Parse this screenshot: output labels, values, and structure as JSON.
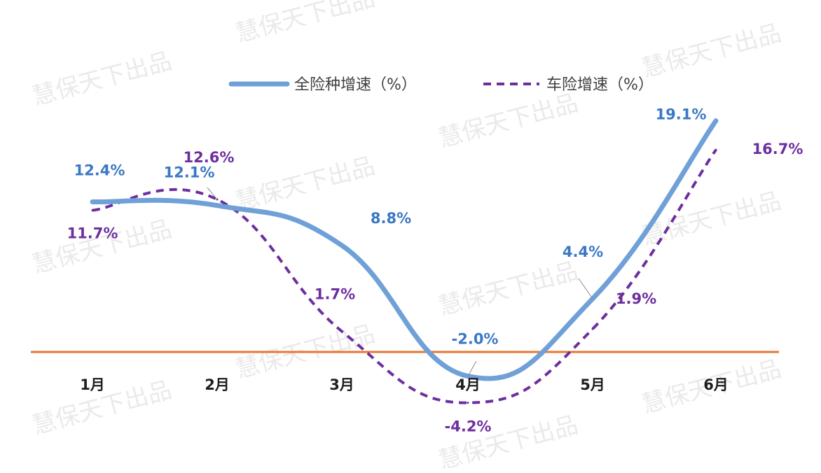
{
  "watermark": "慧保天下出品",
  "colors": {
    "all_lines": "#6fa0d8",
    "auto": "#6d2f9f",
    "all_label": "#3a78c4",
    "auto_label": "#6d2f9f",
    "zero_line": "#e9772f"
  },
  "chart_data": {
    "type": "line",
    "categories": [
      "1月",
      "2月",
      "3月",
      "4月",
      "5月",
      "6月"
    ],
    "series": [
      {
        "name": "全险种增速（%）",
        "values": [
          12.4,
          12.1,
          8.8,
          -2.0,
          4.4,
          19.1
        ],
        "labels": [
          "12.4%",
          "12.1%",
          "8.8%",
          "-2.0%",
          "4.4%",
          "19.1%"
        ],
        "style": "solid"
      },
      {
        "name": "车险增速（%）",
        "values": [
          11.7,
          12.6,
          1.7,
          -4.2,
          1.9,
          16.7
        ],
        "labels": [
          "11.7%",
          "12.6%",
          "1.7%",
          "-4.2%",
          "1.9%",
          "16.7%"
        ],
        "style": "dashed"
      }
    ],
    "ylim": [
      -5,
      20
    ],
    "grid": false,
    "legend": "top-center"
  }
}
